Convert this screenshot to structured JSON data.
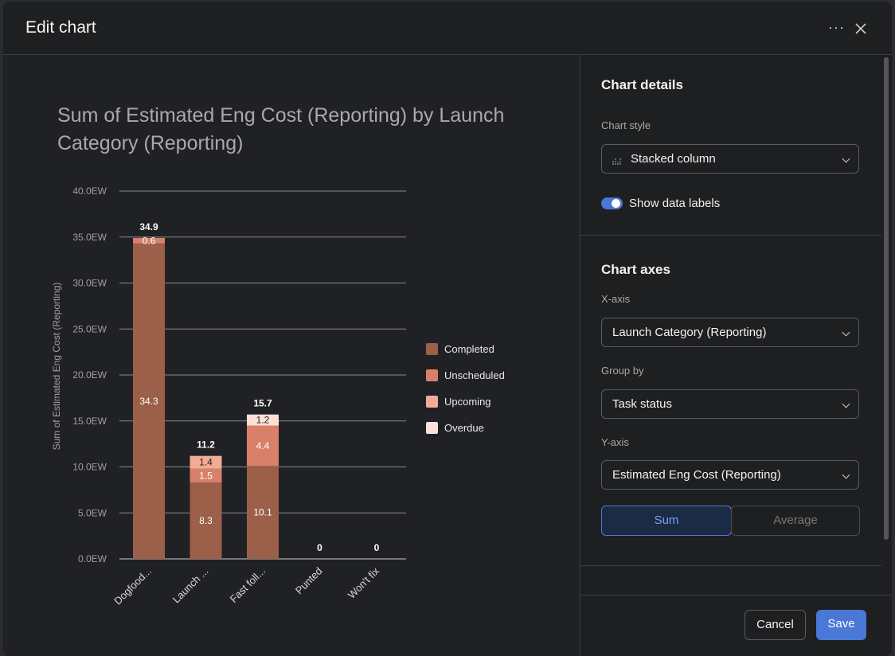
{
  "header": {
    "title": "Edit chart"
  },
  "chart_data": {
    "type": "stacked-bar",
    "title": "Sum of Estimated Eng Cost (Reporting) by Launch Category (Reporting)",
    "y_label": "Sum of Estimated Eng Cost (Reporting)",
    "categories": [
      "Dogfood...",
      "Launch ...",
      "Fast foll...",
      "Punted",
      "Won't fix"
    ],
    "series": [
      {
        "name": "Completed",
        "color": "#9c5f4a",
        "values": [
          34.3,
          8.3,
          10.1,
          0,
          0
        ]
      },
      {
        "name": "Unscheduled",
        "color": "#d9806a",
        "values": [
          0.6,
          1.5,
          4.4,
          0,
          0
        ]
      },
      {
        "name": "Upcoming",
        "color": "#f4ab96",
        "values": [
          0,
          1.4,
          0,
          0,
          0
        ]
      },
      {
        "name": "Overdue",
        "color": "#fde1d8",
        "values": [
          0,
          0,
          1.2,
          0,
          0
        ]
      }
    ],
    "totals": [
      34.9,
      11.2,
      15.7,
      0,
      0
    ],
    "ylim": [
      0,
      40
    ],
    "yticks": [
      {
        "value": 0,
        "label": "0.0EW"
      },
      {
        "value": 5,
        "label": "5.0EW"
      },
      {
        "value": 10,
        "label": "10.0EW"
      },
      {
        "value": 15,
        "label": "15.0EW"
      },
      {
        "value": 20,
        "label": "20.0EW"
      },
      {
        "value": 25,
        "label": "25.0EW"
      },
      {
        "value": 30,
        "label": "30.0EW"
      },
      {
        "value": 35,
        "label": "35.0EW"
      },
      {
        "value": 40,
        "label": "40.0EW"
      }
    ],
    "grid": true,
    "legend": "right"
  },
  "panel": {
    "details_heading": "Chart details",
    "style_label": "Chart style",
    "style_value": "Stacked column",
    "data_labels_toggle": "Show data labels",
    "axes_heading": "Chart axes",
    "x_axis_label": "X-axis",
    "x_axis_value": "Launch Category (Reporting)",
    "group_label": "Group by",
    "group_value": "Task status",
    "y_axis_label": "Y-axis",
    "y_axis_value": "Estimated Eng Cost (Reporting)",
    "aggregation": [
      "Sum",
      "Average"
    ]
  },
  "footer": {
    "cancel": "Cancel",
    "save": "Save"
  }
}
